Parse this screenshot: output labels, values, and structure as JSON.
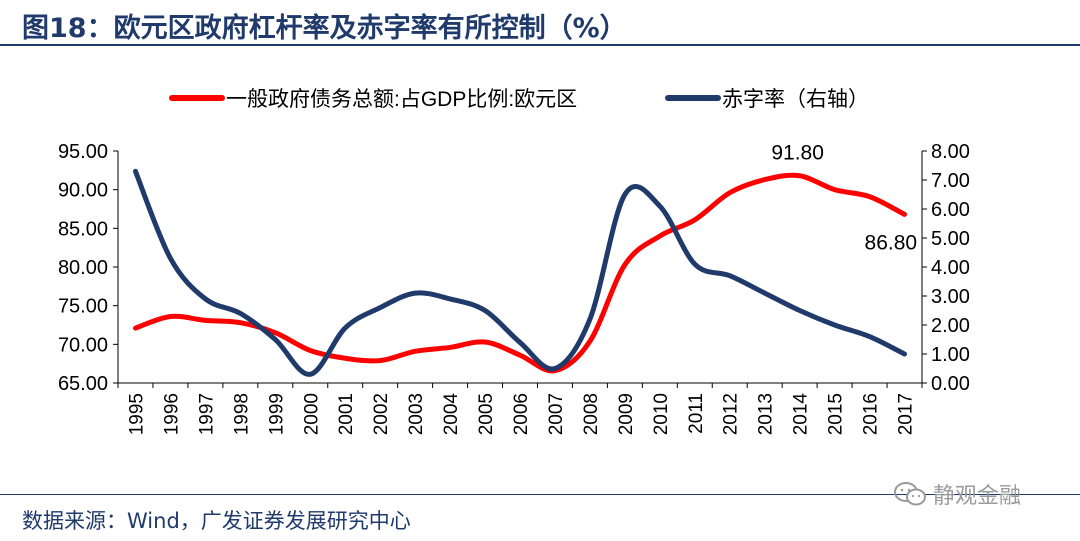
{
  "figure": {
    "title": "图18：欧元区政府杠杆率及赤字率有所控制（%）",
    "source": "数据来源：Wind，广发证券发展研究中心",
    "watermark": "静观金融"
  },
  "chart_data": {
    "type": "line",
    "categories": [
      "1995",
      "1996",
      "1997",
      "1998",
      "1999",
      "2000",
      "2001",
      "2002",
      "2003",
      "2004",
      "2005",
      "2006",
      "2007",
      "2008",
      "2009",
      "2010",
      "2011",
      "2012",
      "2013",
      "2014",
      "2015",
      "2016",
      "2017"
    ],
    "series": [
      {
        "name": "一般政府债务总额:占GDP比例:欧元区",
        "axis": "left",
        "color": "#ff0000",
        "values": [
          72.1,
          73.6,
          73.1,
          72.8,
          71.5,
          69.2,
          68.2,
          67.9,
          69.1,
          69.6,
          70.3,
          68.6,
          66.6,
          70.4,
          80.3,
          84.0,
          86.1,
          89.6,
          91.3,
          91.8,
          90.0,
          89.1,
          86.8
        ]
      },
      {
        "name": "赤字率（右轴）",
        "axis": "right",
        "color": "#1f3a6b",
        "values": [
          7.3,
          4.3,
          2.9,
          2.4,
          1.5,
          0.3,
          1.9,
          2.6,
          3.1,
          2.9,
          2.5,
          1.4,
          0.5,
          2.2,
          6.5,
          6.1,
          4.1,
          3.7,
          3.1,
          2.5,
          2.0,
          1.6,
          1.0
        ]
      }
    ],
    "y_left": {
      "min": 65,
      "max": 95,
      "ticks": [
        "65.00",
        "70.00",
        "75.00",
        "80.00",
        "85.00",
        "90.00",
        "95.00"
      ]
    },
    "y_right": {
      "min": 0,
      "max": 8,
      "ticks": [
        "0.00",
        "1.00",
        "2.00",
        "3.00",
        "4.00",
        "5.00",
        "6.00",
        "7.00",
        "8.00"
      ]
    },
    "annotations": [
      {
        "text": "91.80",
        "series": 0,
        "index": 19
      },
      {
        "text": "86.80",
        "series": 0,
        "index": 22
      }
    ],
    "legend": {
      "placement": "top"
    },
    "grid": false
  }
}
